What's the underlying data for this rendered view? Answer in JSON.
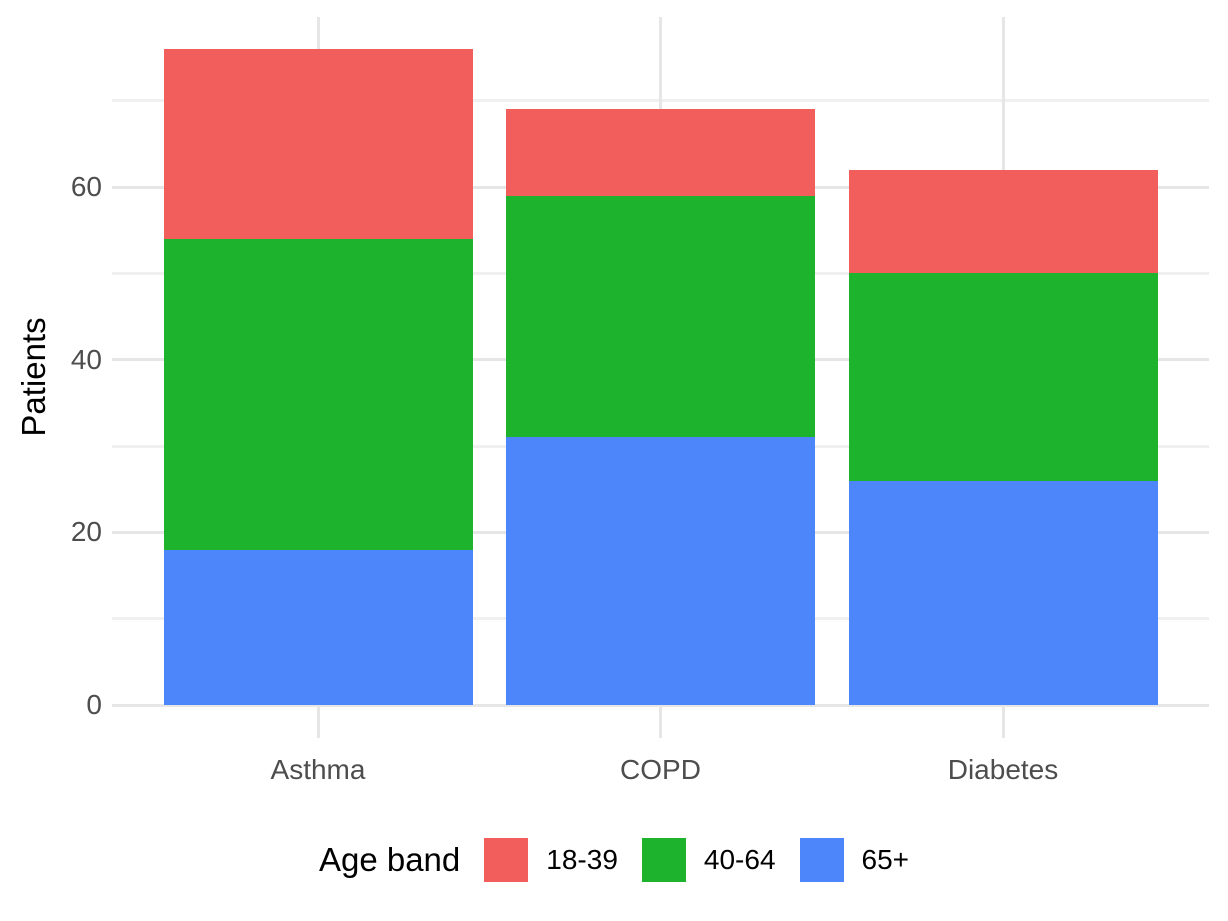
{
  "chart_data": {
    "type": "bar",
    "stacked": true,
    "title": "",
    "xlabel": "",
    "ylabel": "Patients",
    "categories": [
      "Asthma",
      "COPD",
      "Diabetes"
    ],
    "series": [
      {
        "name": "65+",
        "color": "#4d86fa",
        "values": [
          18,
          31,
          26
        ]
      },
      {
        "name": "40-64",
        "color": "#1eb32c",
        "values": [
          36,
          28,
          24
        ]
      },
      {
        "name": "18-39",
        "color": "#f25e5b",
        "values": [
          22,
          10,
          12
        ]
      }
    ],
    "totals": [
      76,
      69,
      62
    ],
    "yticks": [
      0,
      20,
      40,
      60
    ],
    "yminor_gridlines": [
      10,
      30,
      50,
      70
    ],
    "ylim": [
      0,
      80
    ],
    "grid": "on",
    "legend": {
      "title": "Age band",
      "position": "bottom",
      "entries": [
        {
          "label": "18-39",
          "color": "#f25e5b"
        },
        {
          "label": "40-64",
          "color": "#1eb32c"
        },
        {
          "label": "65+",
          "color": "#4d86fa"
        }
      ]
    }
  }
}
